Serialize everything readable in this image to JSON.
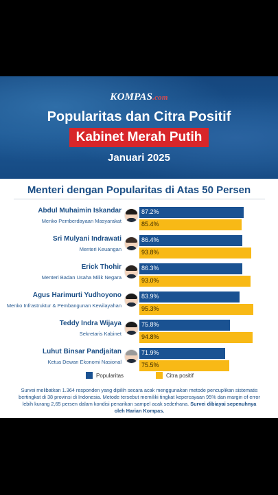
{
  "header": {
    "brand": "KOMPAS",
    "brand_suffix": ".com",
    "title_line1": "Popularitas dan Citra Positif",
    "title_line2": "Kabinet Merah Putih",
    "title_line3": "Januari 2025"
  },
  "colors": {
    "popularitas": "#1a5292",
    "citra_positif": "#f8b916",
    "header_red": "#d8262a"
  },
  "chart_data": {
    "type": "bar",
    "orientation": "horizontal",
    "title": "Menteri dengan Popularitas di Atas 50 Persen",
    "categories": [
      "Abdul Muhaimin Iskandar",
      "Sri Mulyani Indrawati",
      "Erick Thohir",
      "Agus Harimurti Yudhoyono",
      "Teddy Indra Wijaya",
      "Luhut Binsar Pandjaitan"
    ],
    "roles": [
      "Menko Pemberdayaan Masyarakat",
      "Menteri Keuangan",
      "Menteri Badan Usaha Milik Negara",
      "Menko Infrastruktur & Pembangunan Kewilayahan",
      "Sekretaris Kabinet",
      "Ketua Dewan Ekonomi Nasional"
    ],
    "series": [
      {
        "name": "Popularitas",
        "values": [
          87.2,
          86.4,
          86.3,
          83.9,
          75.8,
          71.9
        ],
        "labels": [
          "87.2%",
          "86.4%",
          "86.3%",
          "83.9%",
          "75.8%",
          "71.9%"
        ]
      },
      {
        "name": "Citra positif",
        "values": [
          85.4,
          93.8,
          93.0,
          95.3,
          94.8,
          75.5
        ],
        "labels": [
          "85.4%",
          "93.8%",
          "93.0%",
          "95.3%",
          "94.8%",
          "75.5%"
        ]
      }
    ],
    "xlim": [
      0,
      100
    ],
    "legend": "bottom"
  },
  "footnote": {
    "text": "Survei melibatkan 1.364 responden yang dipilih secara acak menggunakan metode pencuplikan sistematis bertingkat di 38 provinsi di Indonesia. Metode tersebut memiliki tingkat kepercayaan 95% dan margin of error lebih kurang 2,65 persen dalam kondisi penarikan sampel acak sederhana.",
    "emphasis": "Survei dibiayai sepenuhnya oleh Harian Kompas."
  }
}
